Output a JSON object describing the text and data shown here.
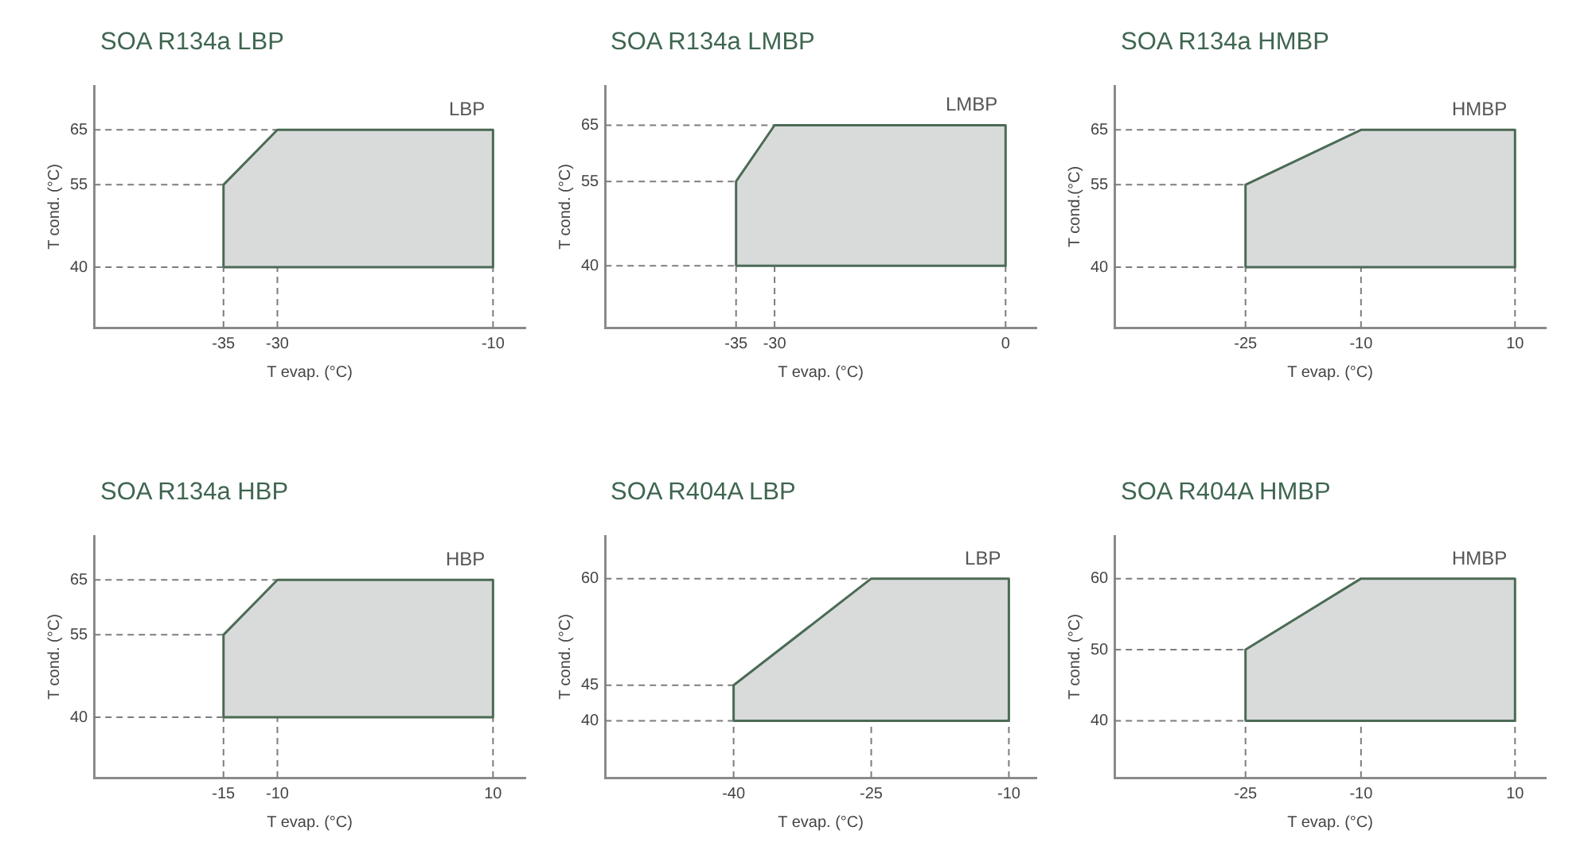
{
  "chart_data": [
    {
      "type": "area",
      "title": "SOA R134a LBP",
      "xlabel": "T evap. (°C)",
      "ylabel": "T cond. (°C)",
      "xlim": [
        -47,
        -7
      ],
      "ylim": [
        29,
        73
      ],
      "xticks": [
        -35,
        -30,
        -10
      ],
      "yticks": [
        40,
        55,
        65
      ],
      "marker": "none",
      "ref_lines": [
        {
          "axis": "y",
          "value": 40,
          "line_style": "dashed"
        },
        {
          "axis": "y",
          "value": 55,
          "line_style": "dashed"
        },
        {
          "axis": "y",
          "value": 65,
          "line_style": "dashed"
        },
        {
          "axis": "x",
          "value": -35,
          "line_style": "dashed"
        },
        {
          "axis": "x",
          "value": -30,
          "line_style": "dashed"
        },
        {
          "axis": "x",
          "value": -10,
          "line_style": "dashed"
        }
      ],
      "series": [
        {
          "name": "LBP",
          "color": "#d9dbdb",
          "x": [
            -35,
            -35,
            -30,
            -10,
            -10,
            -35
          ],
          "values": [
            40,
            55,
            65,
            65,
            40,
            40
          ]
        }
      ]
    },
    {
      "type": "area",
      "title": "SOA R134a LMBP",
      "xlabel": "T evap. (°C)",
      "ylabel": "T cond. (°C)",
      "xlim": [
        -52,
        4
      ],
      "ylim": [
        29,
        72
      ],
      "xticks": [
        -35,
        -30,
        0
      ],
      "yticks": [
        40,
        55,
        65
      ],
      "marker": "none",
      "ref_lines": [
        {
          "axis": "y",
          "value": 40,
          "line_style": "dashed"
        },
        {
          "axis": "y",
          "value": 55,
          "line_style": "dashed"
        },
        {
          "axis": "y",
          "value": 65,
          "line_style": "dashed"
        },
        {
          "axis": "x",
          "value": -35,
          "line_style": "dashed"
        },
        {
          "axis": "x",
          "value": -30,
          "line_style": "dashed"
        },
        {
          "axis": "x",
          "value": 0,
          "line_style": "dashed"
        }
      ],
      "series": [
        {
          "name": "LMBP",
          "color": "#d9dbdb",
          "x": [
            -35,
            -35,
            -30,
            0,
            0,
            -35
          ],
          "values": [
            40,
            55,
            65,
            65,
            40,
            40
          ]
        }
      ]
    },
    {
      "type": "area",
      "title": "SOA R134a HMBP",
      "xlabel": "T evap. (°C)",
      "ylabel": "T cond.(°C)",
      "xlim": [
        -42,
        14
      ],
      "ylim": [
        29,
        73
      ],
      "xticks": [
        -25,
        -10,
        10
      ],
      "yticks": [
        40,
        55,
        65
      ],
      "marker": "none",
      "ref_lines": [
        {
          "axis": "y",
          "value": 40,
          "line_style": "dashed"
        },
        {
          "axis": "y",
          "value": 55,
          "line_style": "dashed"
        },
        {
          "axis": "y",
          "value": 65,
          "line_style": "dashed"
        },
        {
          "axis": "x",
          "value": -25,
          "line_style": "dashed"
        },
        {
          "axis": "x",
          "value": -10,
          "line_style": "dashed"
        },
        {
          "axis": "x",
          "value": 10,
          "line_style": "dashed"
        }
      ],
      "series": [
        {
          "name": "HMBP",
          "color": "#d9dbdb",
          "x": [
            -25,
            -25,
            -10,
            10,
            10,
            -25
          ],
          "values": [
            40,
            55,
            65,
            65,
            40,
            40
          ]
        }
      ]
    },
    {
      "type": "area",
      "title": "SOA R134a HBP",
      "xlabel": "T evap. (°C)",
      "ylabel": "T cond. (°C)",
      "xlim": [
        -27,
        13
      ],
      "ylim": [
        29,
        73
      ],
      "xticks": [
        -15,
        -10,
        10
      ],
      "yticks": [
        40,
        55,
        65
      ],
      "marker": "none",
      "ref_lines": [
        {
          "axis": "y",
          "value": 40,
          "line_style": "dashed"
        },
        {
          "axis": "y",
          "value": 55,
          "line_style": "dashed"
        },
        {
          "axis": "y",
          "value": 65,
          "line_style": "dashed"
        },
        {
          "axis": "x",
          "value": -15,
          "line_style": "dashed"
        },
        {
          "axis": "x",
          "value": -10,
          "line_style": "dashed"
        },
        {
          "axis": "x",
          "value": 10,
          "line_style": "dashed"
        }
      ],
      "series": [
        {
          "name": "HBP",
          "color": "#d9dbdb",
          "x": [
            -15,
            -15,
            -10,
            10,
            10,
            -15
          ],
          "values": [
            40,
            55,
            65,
            65,
            40,
            40
          ]
        }
      ]
    },
    {
      "type": "area",
      "title": "SOA R404A LBP",
      "xlabel": "T evap. (°C)",
      "ylabel": "T cond. (°C)",
      "xlim": [
        -54,
        -7
      ],
      "ylim": [
        32,
        66
      ],
      "xticks": [
        -40,
        -25,
        -10
      ],
      "yticks": [
        40,
        45,
        60
      ],
      "marker": "none",
      "ref_lines": [
        {
          "axis": "y",
          "value": 40,
          "line_style": "dashed"
        },
        {
          "axis": "y",
          "value": 45,
          "line_style": "dashed"
        },
        {
          "axis": "y",
          "value": 60,
          "line_style": "dashed"
        },
        {
          "axis": "x",
          "value": -40,
          "line_style": "dashed"
        },
        {
          "axis": "x",
          "value": -25,
          "line_style": "dashed"
        },
        {
          "axis": "x",
          "value": -10,
          "line_style": "dashed"
        }
      ],
      "series": [
        {
          "name": "LBP",
          "color": "#d9dbdb",
          "x": [
            -40,
            -40,
            -25,
            -10,
            -10,
            -40
          ],
          "values": [
            40,
            45,
            60,
            60,
            40,
            40
          ]
        }
      ]
    },
    {
      "type": "area",
      "title": "SOA R404A HMBP",
      "xlabel": "T evap. (°C)",
      "ylabel": "T cond. (°C)",
      "xlim": [
        -42,
        14
      ],
      "ylim": [
        32,
        66
      ],
      "xticks": [
        -25,
        -10,
        10
      ],
      "yticks": [
        40,
        50,
        60
      ],
      "marker": "none",
      "ref_lines": [
        {
          "axis": "y",
          "value": 40,
          "line_style": "dashed"
        },
        {
          "axis": "y",
          "value": 50,
          "line_style": "dashed"
        },
        {
          "axis": "y",
          "value": 60,
          "line_style": "dashed"
        },
        {
          "axis": "x",
          "value": -25,
          "line_style": "dashed"
        },
        {
          "axis": "x",
          "value": -10,
          "line_style": "dashed"
        },
        {
          "axis": "x",
          "value": 10,
          "line_style": "dashed"
        }
      ],
      "series": [
        {
          "name": "HMBP",
          "color": "#d9dbdb",
          "x": [
            -25,
            -25,
            -10,
            10,
            10,
            -25
          ],
          "values": [
            40,
            50,
            60,
            60,
            40,
            40
          ]
        }
      ]
    }
  ]
}
